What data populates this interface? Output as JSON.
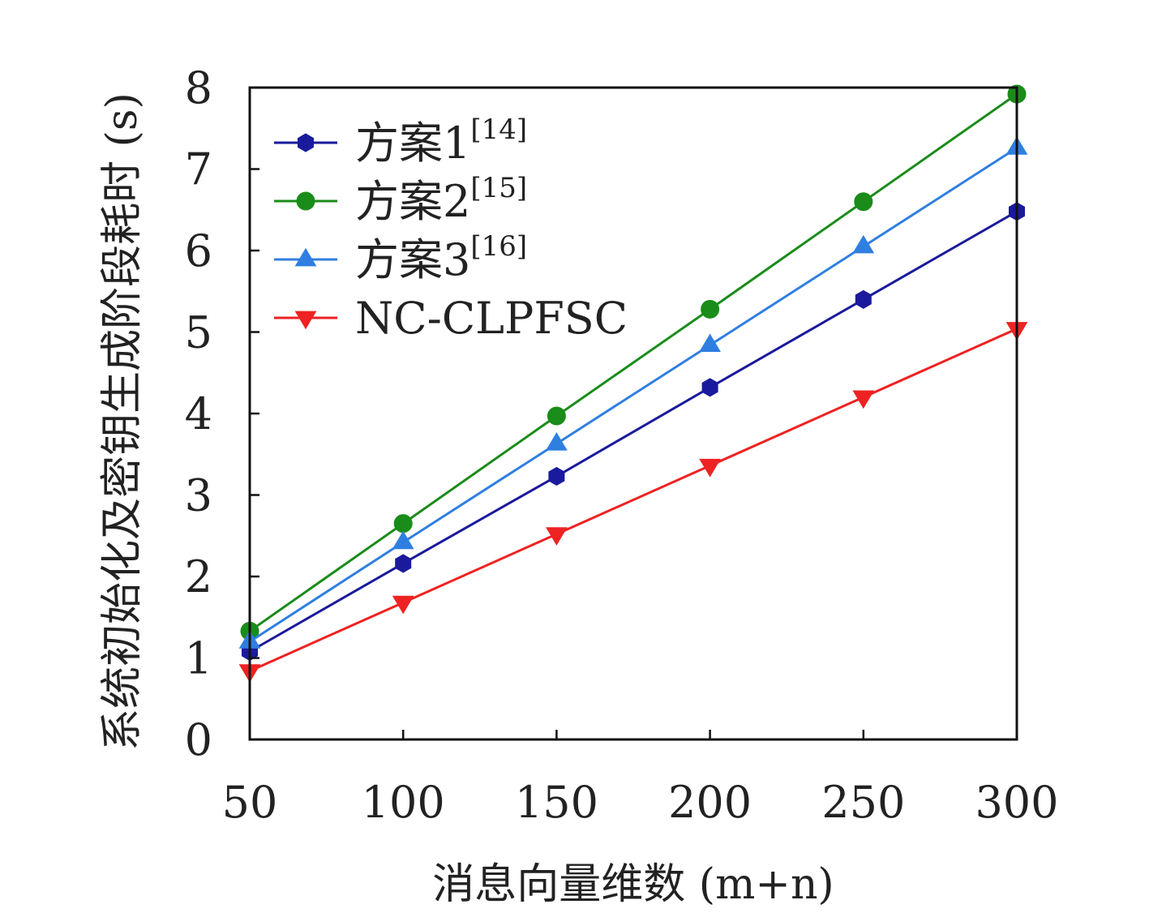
{
  "chart_data": {
    "type": "line",
    "title": "",
    "xlabel": "消息向量维数 (m+n)",
    "ylabel": "系统初始化及密钥生成阶段耗时 (s)",
    "x": [
      50,
      100,
      150,
      200,
      250,
      300
    ],
    "x_ticks": [
      "50",
      "100",
      "150",
      "200",
      "250",
      "300"
    ],
    "y_ticks": [
      "0",
      "1",
      "2",
      "3",
      "4",
      "5",
      "6",
      "7",
      "8"
    ],
    "xlim": [
      50,
      300
    ],
    "ylim": [
      0,
      8
    ],
    "grid": false,
    "legend_position": "top-left",
    "series": [
      {
        "name": "方案1",
        "ref": "[14]",
        "color": "#1a1a9c",
        "marker": "hexagon",
        "values": [
          1.08,
          2.16,
          3.23,
          4.32,
          5.4,
          6.48
        ]
      },
      {
        "name": "方案2",
        "ref": "[15]",
        "color": "#1a8c1a",
        "marker": "circle",
        "values": [
          1.33,
          2.65,
          3.97,
          5.28,
          6.6,
          7.92
        ]
      },
      {
        "name": "方案3",
        "ref": "[16]",
        "color": "#2f7fe0",
        "marker": "triangle-up",
        "values": [
          1.2,
          2.42,
          3.63,
          4.84,
          6.05,
          7.26
        ]
      },
      {
        "name": "NC-CLPFSC",
        "ref": "",
        "color": "#ee2222",
        "marker": "triangle-down",
        "values": [
          0.84,
          1.68,
          2.52,
          3.36,
          4.2,
          5.04
        ]
      }
    ]
  }
}
